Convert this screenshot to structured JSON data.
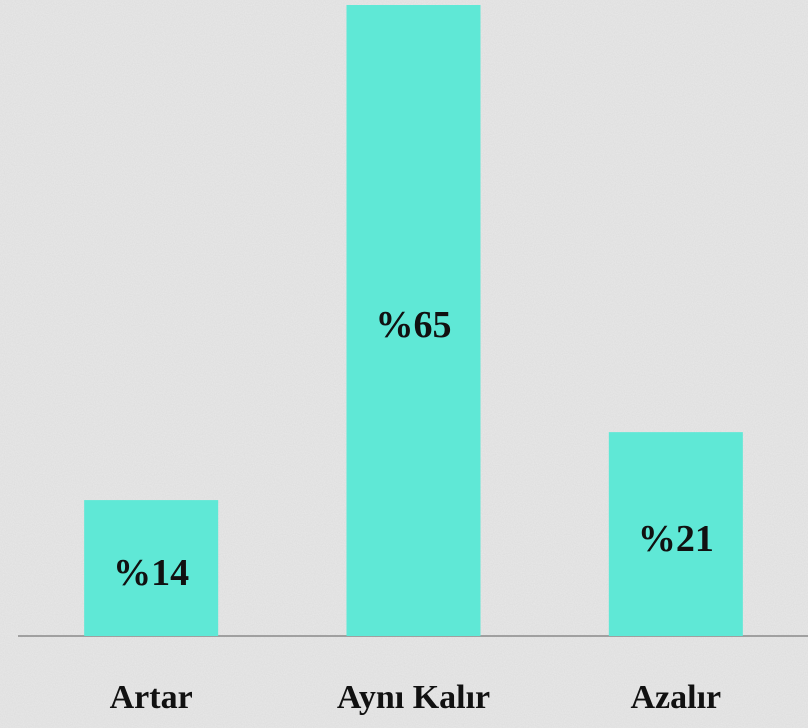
{
  "chart_data": {
    "type": "bar",
    "categories": [
      "Artar",
      "Aynı Kalır",
      "Azalır"
    ],
    "values": [
      14,
      65,
      21
    ],
    "value_labels": [
      "%14",
      "%65",
      "%21"
    ],
    "color": "#5fe8d6",
    "ylim": [
      0,
      65
    ]
  }
}
